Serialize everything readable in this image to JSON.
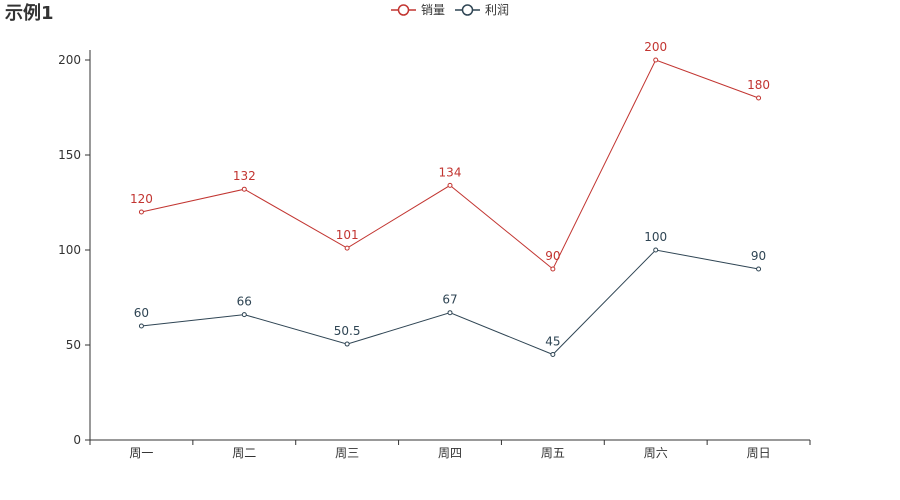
{
  "chart_data": {
    "type": "line",
    "title": "示例1",
    "categories": [
      "周一",
      "周二",
      "周三",
      "周四",
      "周五",
      "周六",
      "周日"
    ],
    "series": [
      {
        "name": "销量",
        "color": "#c23531",
        "values": [
          120,
          132,
          101,
          134,
          90,
          200,
          180
        ]
      },
      {
        "name": "利润",
        "color": "#2f4554",
        "values": [
          60,
          66,
          50.5,
          67,
          45,
          100,
          90
        ]
      }
    ],
    "y_ticks": [
      0,
      50,
      100,
      150,
      200
    ],
    "ylim": [
      0,
      200
    ],
    "xlabel": "",
    "ylabel": "",
    "legend_position": "top-center",
    "grid": false,
    "data_labels": true
  }
}
